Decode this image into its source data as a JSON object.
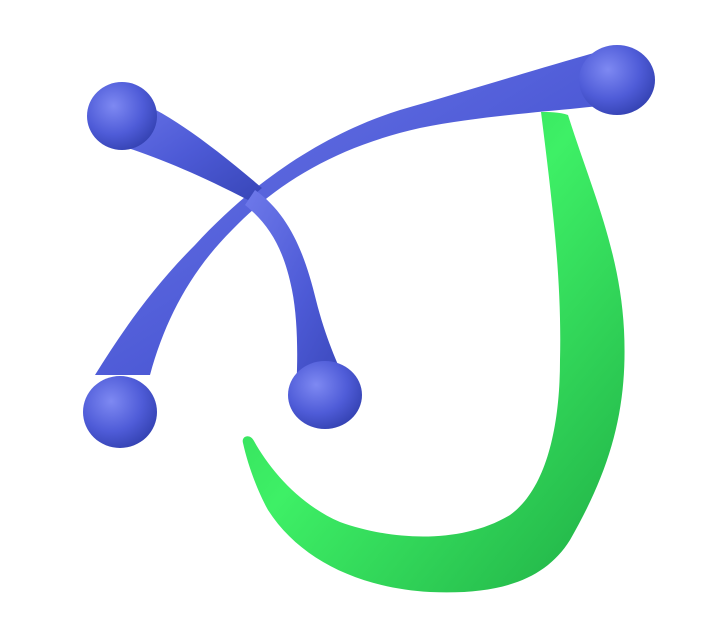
{
  "figure": {
    "shapes": [
      {
        "name": "blue-x-shape",
        "color": "#4d5ad6",
        "highlight": "#7480ef",
        "shadow": "#3441b3"
      },
      {
        "name": "green-hook-shape",
        "color": "#2fd35a",
        "highlight": "#5bff82",
        "shadow": "#1aa43f"
      }
    ]
  }
}
